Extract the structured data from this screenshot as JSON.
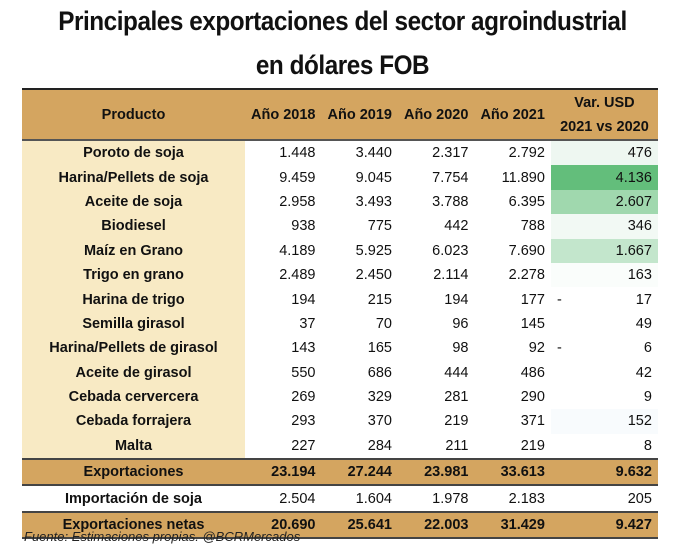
{
  "title_line1": "Principales exportaciones del sector agroindustrial",
  "title_line2": "en dólares FOB",
  "headers": {
    "product": "Producto",
    "y2018": "Año 2018",
    "y2019": "Año 2019",
    "y2020": "Año 2020",
    "y2021": "Año 2021",
    "var_line1": "Var. USD",
    "var_line2": "2021 vs 2020"
  },
  "rows": [
    {
      "product": "Poroto de soja",
      "values": [
        "1.448",
        "3.440",
        "2.317",
        "2.792"
      ],
      "var": "476",
      "neg": false,
      "color": "#eef7f1"
    },
    {
      "product": "Harina/Pellets de soja",
      "values": [
        "9.459",
        "9.045",
        "7.754",
        "11.890"
      ],
      "var": "4.136",
      "neg": false,
      "color": "#63be7b"
    },
    {
      "product": "Aceite de soja",
      "values": [
        "2.958",
        "3.493",
        "3.788",
        "6.395"
      ],
      "var": "2.607",
      "neg": false,
      "color": "#a0d8ae"
    },
    {
      "product": "Biodiesel",
      "values": [
        "938",
        "775",
        "442",
        "788"
      ],
      "var": "346",
      "neg": false,
      "color": "#f2f9f4"
    },
    {
      "product": "Maíz en Grano",
      "values": [
        "4.189",
        "5.925",
        "6.023",
        "7.690"
      ],
      "var": "1.667",
      "neg": false,
      "color": "#c3e6cc"
    },
    {
      "product": "Trigo en grano",
      "values": [
        "2.489",
        "2.450",
        "2.114",
        "2.278"
      ],
      "var": "163",
      "neg": false,
      "color": "#fafdfb"
    },
    {
      "product": "Harina de trigo",
      "values": [
        "194",
        "215",
        "194",
        "177"
      ],
      "var": "17",
      "neg": true,
      "color": "#ffffff"
    },
    {
      "product": "Semilla girasol",
      "values": [
        "37",
        "70",
        "96",
        "145"
      ],
      "var": "49",
      "neg": false,
      "color": "#ffffff"
    },
    {
      "product": "Harina/Pellets de girasol",
      "values": [
        "143",
        "165",
        "98",
        "92"
      ],
      "var": "6",
      "neg": true,
      "color": "#ffffff"
    },
    {
      "product": "Aceite de girasol",
      "values": [
        "550",
        "686",
        "444",
        "486"
      ],
      "var": "42",
      "neg": false,
      "color": "#ffffff"
    },
    {
      "product": "Cebada cervercera",
      "values": [
        "269",
        "329",
        "281",
        "290"
      ],
      "var": "9",
      "neg": false,
      "color": "#ffffff"
    },
    {
      "product": "Cebada forrajera",
      "values": [
        "293",
        "370",
        "219",
        "371"
      ],
      "var": "152",
      "neg": false,
      "color": "#f8fbfd"
    },
    {
      "product": "Malta",
      "values": [
        "227",
        "284",
        "211",
        "219"
      ],
      "var": "8",
      "neg": false,
      "color": "#ffffff"
    }
  ],
  "totals": [
    {
      "product": "Exportaciones",
      "values": [
        "23.194",
        "27.244",
        "23.981",
        "33.613"
      ],
      "var": "9.632",
      "kind": "tot"
    },
    {
      "product": "Importación de soja",
      "values": [
        "2.504",
        "1.604",
        "1.978",
        "2.183"
      ],
      "var": "205",
      "kind": "imp"
    },
    {
      "product": "Exportaciones netas",
      "values": [
        "20.690",
        "25.641",
        "22.003",
        "31.429"
      ],
      "var": "9.427",
      "kind": "tot"
    }
  ],
  "footer": "Fuente: Estimaciones propias.  @BCRMercados"
}
